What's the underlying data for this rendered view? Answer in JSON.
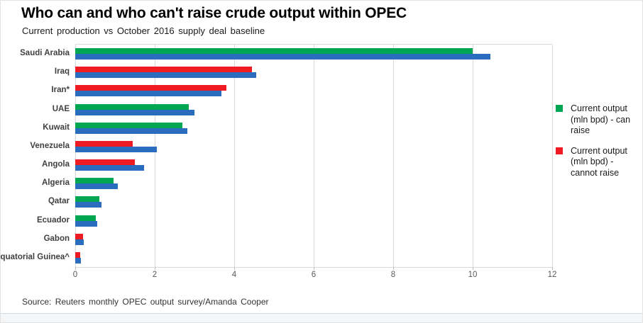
{
  "title": "Who can and who can't raise crude output within OPEC",
  "subtitle": "Current production vs October 2016 supply deal baseline",
  "source": "Source: Reuters monthly OPEC output survey/Amanda Cooper",
  "chart_data": {
    "type": "bar",
    "orientation": "horizontal",
    "unit": "mln bpd",
    "x_axis": {
      "min": 0,
      "max": 12,
      "ticks": [
        0,
        2,
        4,
        6,
        8,
        10,
        12
      ]
    },
    "grid": true,
    "legend_position": "right",
    "legend": [
      {
        "label": "Current output (mln bpd) - can raise",
        "color": "#00A651"
      },
      {
        "label": "Current output (mln bpd) - cannot raise",
        "color": "#EE1B22"
      }
    ],
    "colors": {
      "can_raise": "#00A651",
      "cannot_raise": "#EE1B22",
      "baseline": "#2A6CBE",
      "gridline": "#D9D9D9"
    },
    "countries": [
      {
        "name": "Saudi Arabia",
        "current": 10.0,
        "baseline": 10.45,
        "can_raise": true
      },
      {
        "name": "Iraq",
        "current": 4.45,
        "baseline": 4.55,
        "can_raise": false
      },
      {
        "name": "Iran*",
        "current": 3.8,
        "baseline": 3.67,
        "can_raise": false
      },
      {
        "name": "UAE",
        "current": 2.85,
        "baseline": 3.0,
        "can_raise": true
      },
      {
        "name": "Kuwait",
        "current": 2.7,
        "baseline": 2.82,
        "can_raise": true
      },
      {
        "name": "Venezuela",
        "current": 1.45,
        "baseline": 2.05,
        "can_raise": false
      },
      {
        "name": "Angola",
        "current": 1.5,
        "baseline": 1.73,
        "can_raise": false
      },
      {
        "name": "Algeria",
        "current": 0.97,
        "baseline": 1.08,
        "can_raise": true
      },
      {
        "name": "Qatar",
        "current": 0.6,
        "baseline": 0.66,
        "can_raise": true
      },
      {
        "name": "Ecuador",
        "current": 0.52,
        "baseline": 0.55,
        "can_raise": true
      },
      {
        "name": "Gabon",
        "current": 0.19,
        "baseline": 0.21,
        "can_raise": false
      },
      {
        "name": "Equatorial Guinea^",
        "current": 0.12,
        "baseline": 0.15,
        "can_raise": false
      }
    ]
  }
}
